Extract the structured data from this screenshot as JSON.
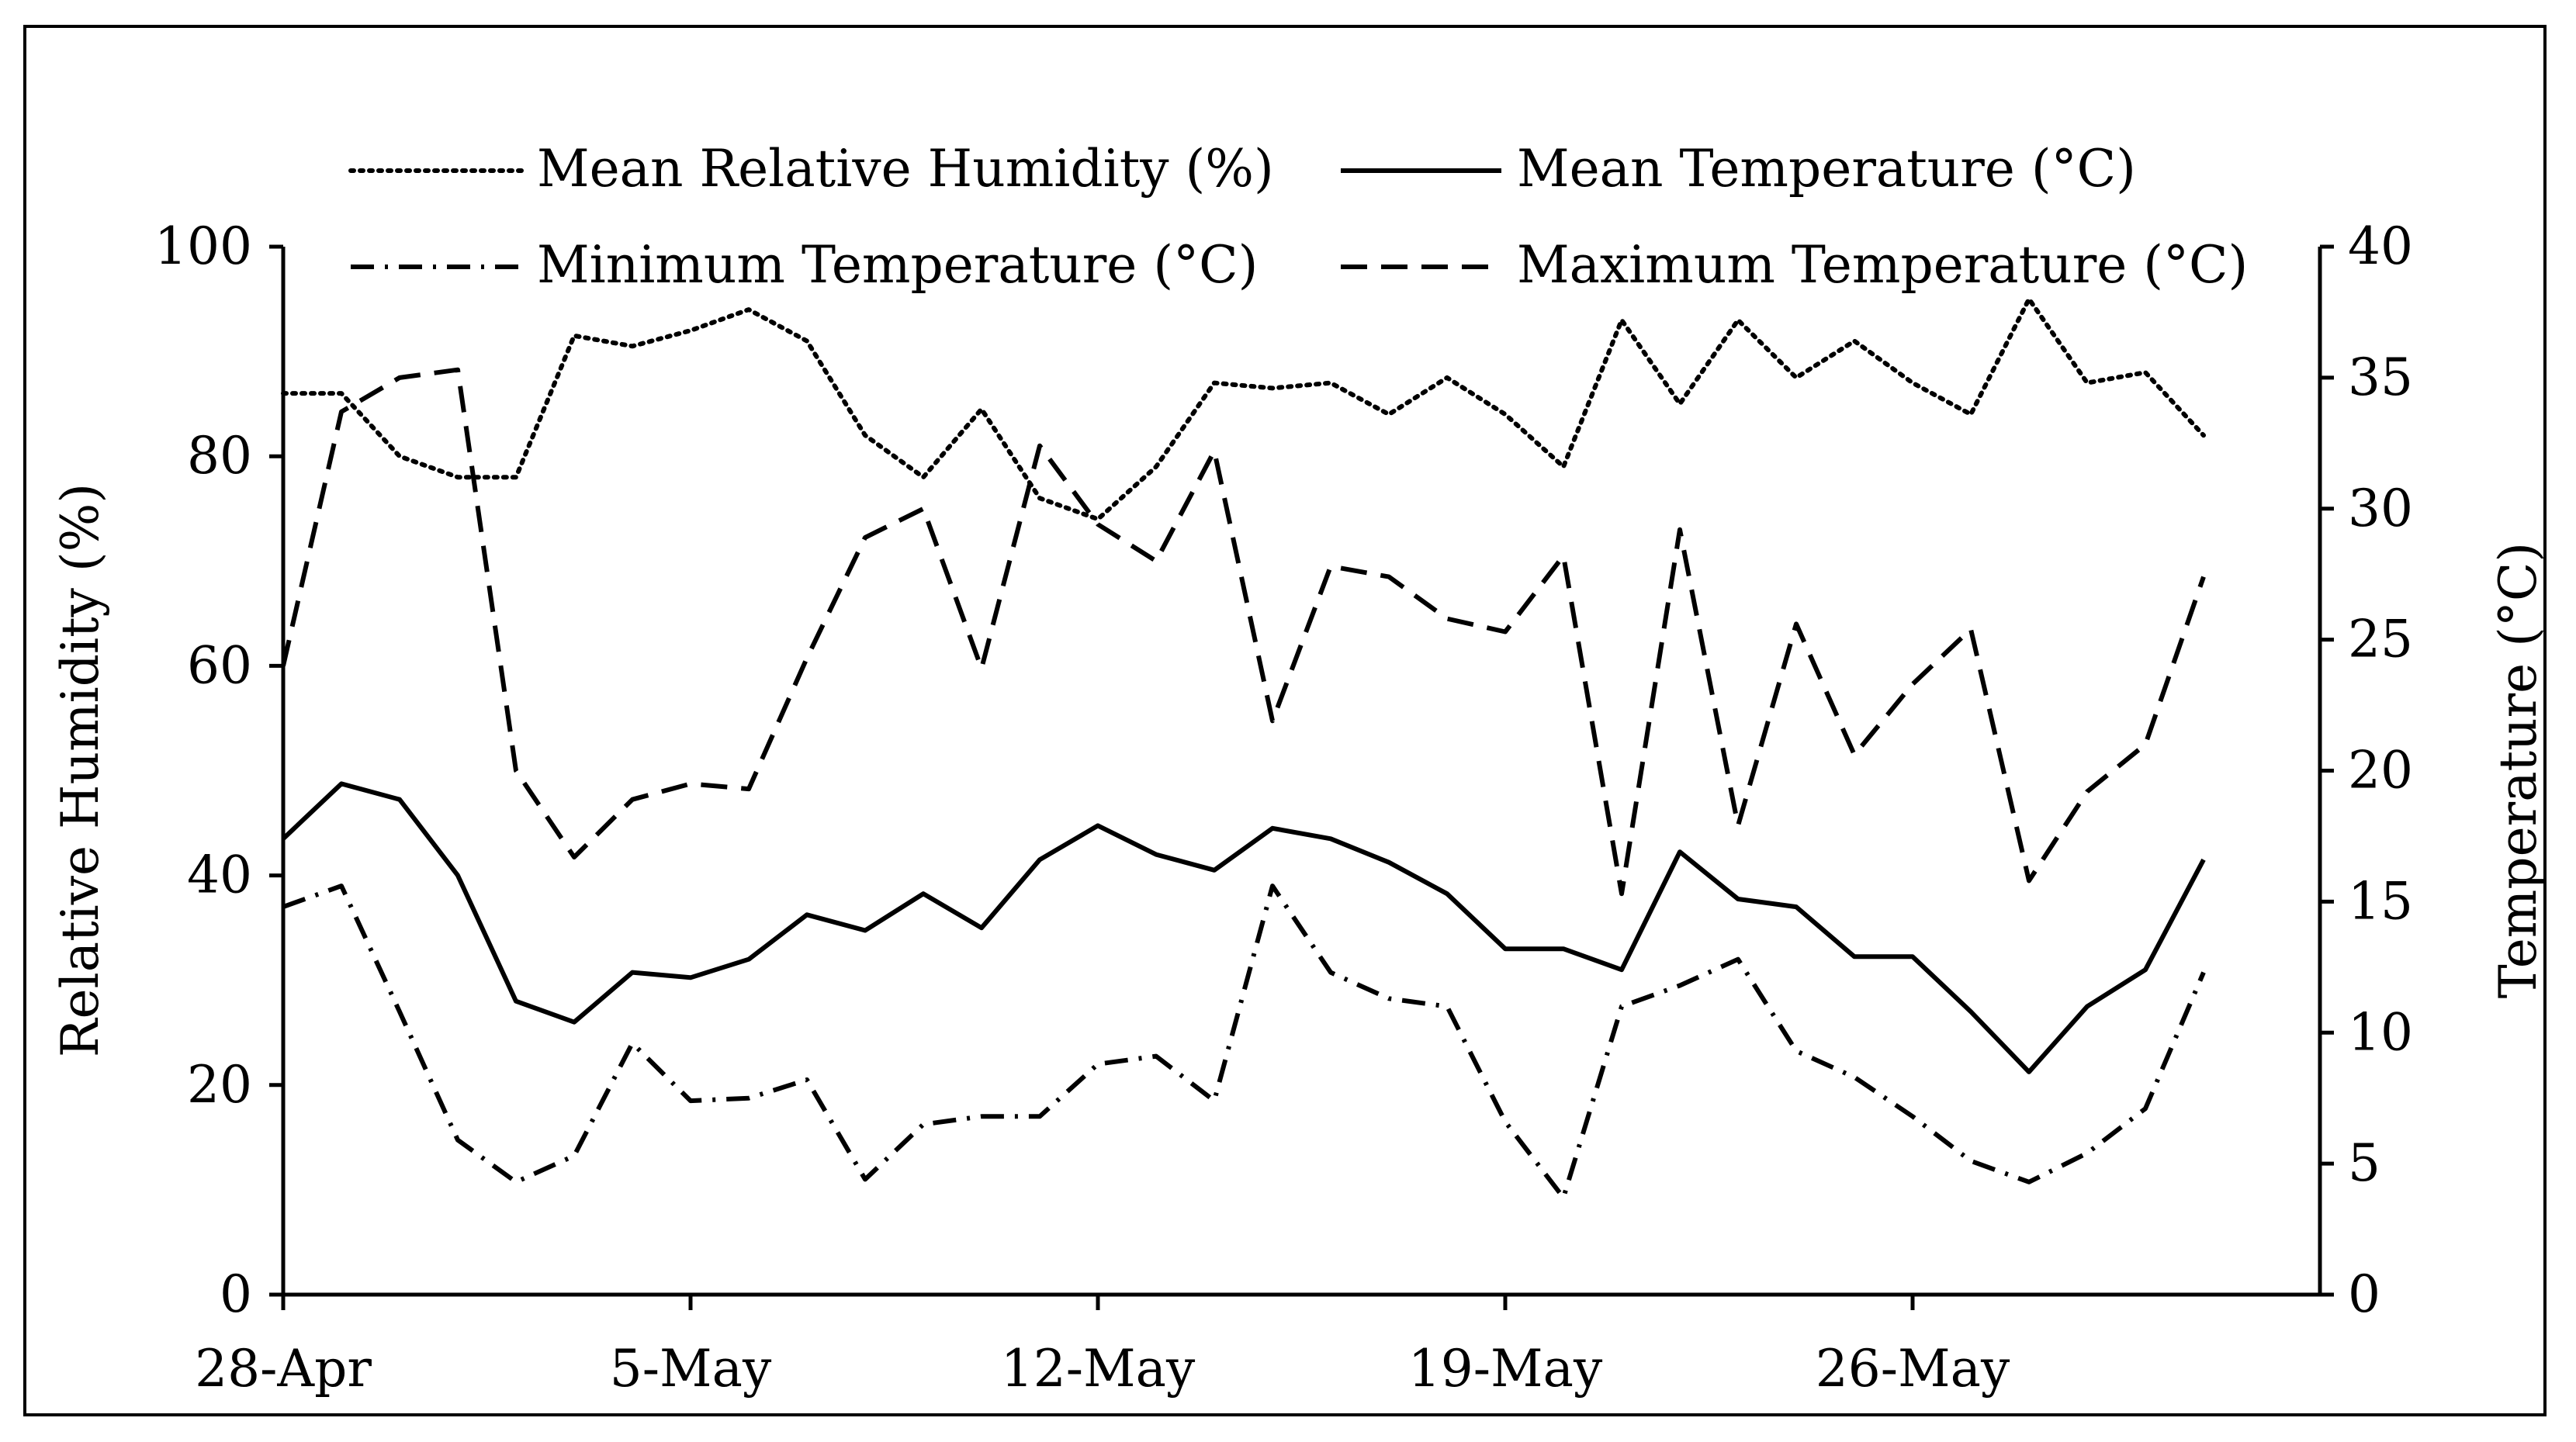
{
  "chart_data": {
    "type": "line",
    "title": "",
    "xlabel": "",
    "ylabel_left": "Relative Humidity (%)",
    "ylabel_right": "Temperature (°C)",
    "ylim_left": [
      0,
      100
    ],
    "ylim_right": [
      0,
      40
    ],
    "yticks_left": [
      "0",
      "20",
      "40",
      "60",
      "80",
      "100"
    ],
    "yticks_right": [
      "0",
      "5",
      "10",
      "15",
      "20",
      "25",
      "30",
      "35",
      "40"
    ],
    "x_day_range": [
      0,
      35
    ],
    "xticks": [
      {
        "day": 0,
        "label": "28-Apr"
      },
      {
        "day": 7,
        "label": "5-May"
      },
      {
        "day": 14,
        "label": "12-May"
      },
      {
        "day": 21,
        "label": "19-May"
      },
      {
        "day": 28,
        "label": "26-May"
      }
    ],
    "days": [
      0,
      1,
      2,
      3,
      4,
      5,
      6,
      7,
      8,
      9,
      10,
      11,
      12,
      13,
      14,
      15,
      16,
      17,
      18,
      19,
      20,
      21,
      22,
      23,
      24,
      25,
      26,
      27,
      28,
      29,
      30,
      31,
      32,
      33
    ],
    "series": [
      {
        "name": "Mean Relative Humidity (%)",
        "axis": "left",
        "style": "dotted",
        "values": [
          86,
          86,
          80,
          78,
          78,
          91.5,
          90.5,
          92,
          94,
          91,
          82,
          78,
          84.5,
          76,
          74,
          79,
          87,
          86.5,
          87,
          84,
          87.5,
          84,
          79,
          93,
          85,
          93,
          87.5,
          91,
          87,
          84,
          95,
          87,
          88,
          82
        ]
      },
      {
        "name": "Mean Temperature (°C)",
        "axis": "right",
        "style": "solid",
        "values": [
          17.4,
          19.5,
          18.9,
          16,
          11.2,
          10.4,
          12.3,
          12.1,
          12.8,
          14.5,
          13.9,
          15.3,
          14,
          16.6,
          17.9,
          16.8,
          16.2,
          17.8,
          17.4,
          16.5,
          15.3,
          13.2,
          13.2,
          12.4,
          16.9,
          15.1,
          14.8,
          12.9,
          12.9,
          10.8,
          8.5,
          11,
          12.4,
          16.6
        ]
      },
      {
        "name": "Minimum Temperature (°C)",
        "axis": "right",
        "style": "dashdot",
        "values": [
          14.8,
          15.6,
          10.8,
          5.9,
          4.3,
          5.3,
          9.6,
          7.4,
          7.5,
          8.2,
          4.4,
          6.5,
          6.8,
          6.8,
          8.8,
          9.1,
          7.4,
          15.6,
          12.3,
          11.3,
          11,
          6.6,
          3.7,
          11,
          11.8,
          12.8,
          9.3,
          8.3,
          6.8,
          5.1,
          4.3,
          5.4,
          7.1,
          12.3
        ]
      },
      {
        "name": "Maximum Temperature (°C)",
        "axis": "right",
        "style": "dashed",
        "values": [
          24,
          33.7,
          35,
          35.3,
          20,
          16.7,
          18.9,
          19.5,
          19.3,
          24.3,
          28.9,
          30,
          23.9,
          32.4,
          29.4,
          28,
          32.2,
          21.9,
          27.8,
          27.4,
          25.8,
          25.3,
          28.2,
          15.3,
          29.2,
          17.9,
          25.6,
          20.6,
          23.3,
          25.4,
          15.8,
          19.2,
          21,
          27.4
        ]
      }
    ],
    "legend": {
      "placement": "top",
      "entries": [
        {
          "label": "Mean Relative Humidity (%)",
          "style": "dotted"
        },
        {
          "label": "Mean Temperature (°C)",
          "style": "solid"
        },
        {
          "label": "Minimum Temperature (°C)",
          "style": "dashdot"
        },
        {
          "label": "Maximum Temperature (°C)",
          "style": "dashed"
        }
      ]
    },
    "grid": false
  }
}
